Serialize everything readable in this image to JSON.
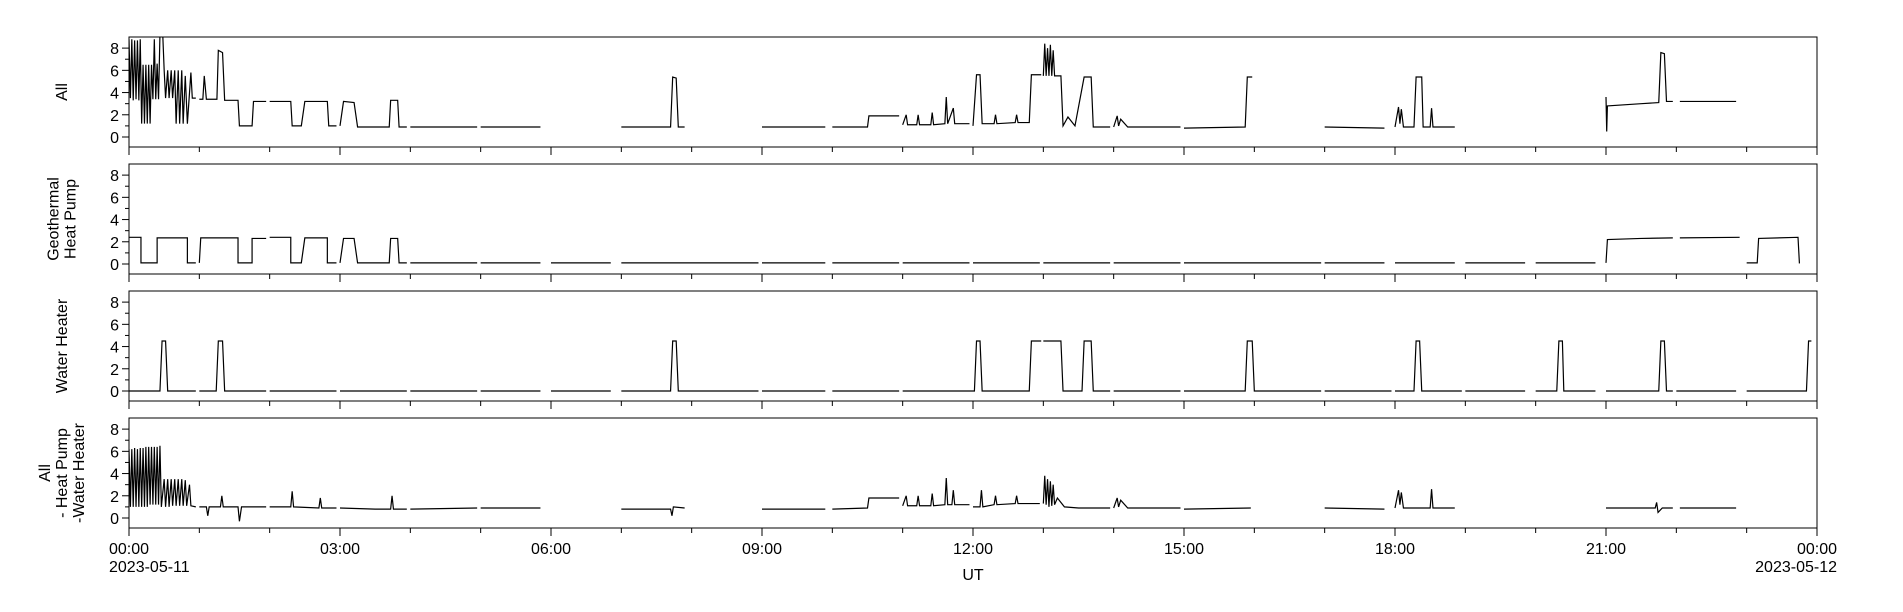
{
  "chart_data": [
    {
      "type": "line",
      "ylabel": [
        "All"
      ],
      "color": "#000000",
      "xlim": [
        0,
        24
      ],
      "ylim": [
        -0.9,
        9.0
      ],
      "yticks": [
        0,
        2,
        4,
        6,
        8
      ],
      "x": [
        0,
        0.02,
        0.04,
        0.06,
        0.08,
        0.1,
        0.12,
        0.14,
        0.16,
        0.18,
        0.2,
        0.22,
        0.24,
        0.26,
        0.28,
        0.3,
        0.32,
        0.34,
        0.36,
        0.38,
        0.4,
        0.42,
        0.44,
        0.48,
        0.5,
        0.52,
        0.55,
        0.57,
        0.6,
        0.62,
        0.65,
        0.67,
        0.7,
        0.72,
        0.75,
        0.77,
        0.8,
        0.83,
        0.88,
        0.9,
        0.95,
        0.97,
        1.0,
        1.05,
        1.07,
        1.1,
        1.25,
        1.27,
        1.33,
        1.36,
        1.55,
        1.57,
        1.75,
        1.77,
        1.95,
        1.97,
        2.0,
        2.3,
        2.32,
        2.45,
        2.5,
        2.82,
        2.84,
        2.95,
        2.97,
        3.0,
        3.05,
        3.2,
        3.25,
        3.7,
        3.72,
        3.82,
        3.84,
        3.95,
        3.97,
        4.0,
        4.95,
        4.97,
        5.0,
        5.85,
        5.9,
        7.0,
        7.7,
        7.73,
        7.78,
        7.81,
        7.9,
        7.92,
        9.0,
        9.9,
        9.95,
        10.0,
        10.5,
        10.52,
        10.95,
        10.97,
        11.0,
        11.05,
        11.07,
        11.2,
        11.22,
        11.24,
        11.4,
        11.42,
        11.44,
        11.6,
        11.62,
        11.64,
        11.72,
        11.74,
        11.95,
        11.97,
        12.0,
        12.05,
        12.1,
        12.13,
        12.3,
        12.32,
        12.34,
        12.6,
        12.62,
        12.64,
        12.8,
        12.83,
        12.97,
        12.98,
        13.0,
        13.02,
        13.04,
        13.06,
        13.08,
        13.1,
        13.12,
        13.14,
        13.16,
        13.25,
        13.28,
        13.35,
        13.45,
        13.58,
        13.68,
        13.71,
        13.95,
        13.97,
        14.0,
        14.05,
        14.07,
        14.1,
        14.2,
        14.95,
        14.97,
        15.0,
        15.87,
        15.9,
        15.97,
        15.99,
        17.0,
        17.85,
        17.9,
        18.0,
        18.05,
        18.07,
        18.09,
        18.12,
        18.27,
        18.3,
        18.38,
        18.4,
        18.5,
        18.52,
        18.54,
        18.85,
        18.9,
        21.0,
        21.01,
        21.02,
        21.5,
        21.75,
        21.78,
        21.83,
        21.86,
        21.95,
        21.97,
        22.05,
        22.85
      ],
      "values": [
        8.8,
        3.5,
        8.8,
        3.3,
        8.7,
        3.4,
        8.7,
        3.3,
        8.8,
        1.2,
        6.5,
        1.2,
        6.5,
        1.2,
        6.5,
        1.2,
        6.5,
        3.4,
        8.8,
        3.4,
        6.6,
        3.4,
        9.2,
        9.2,
        6.0,
        3.5,
        6.0,
        3.5,
        6.0,
        3.5,
        6.0,
        1.2,
        6.0,
        1.2,
        6.0,
        1.2,
        5.5,
        1.2,
        5.8,
        3.5,
        3.5,
        null,
        3.4,
        3.4,
        5.5,
        3.4,
        3.4,
        7.8,
        7.6,
        3.3,
        3.3,
        1.0,
        1.0,
        3.2,
        3.2,
        null,
        3.2,
        3.2,
        1.0,
        1.0,
        3.2,
        3.2,
        1.0,
        1.0,
        null,
        1.0,
        3.2,
        3.1,
        0.9,
        0.9,
        3.3,
        3.3,
        0.9,
        0.9,
        null,
        0.9,
        0.9,
        null,
        0.9,
        0.9,
        null,
        0.9,
        0.9,
        5.4,
        5.3,
        0.9,
        0.9,
        null,
        0.9,
        0.9,
        null,
        0.9,
        0.9,
        1.9,
        1.9,
        null,
        1.1,
        2.0,
        1.1,
        1.1,
        2.0,
        1.1,
        1.1,
        2.2,
        1.1,
        1.2,
        3.6,
        1.2,
        2.6,
        1.2,
        1.2,
        null,
        1.0,
        5.6,
        5.6,
        1.2,
        1.2,
        2.0,
        1.2,
        1.3,
        2.0,
        1.3,
        1.3,
        5.6,
        5.6,
        null,
        5.5,
        8.4,
        5.5,
        8.0,
        5.5,
        8.3,
        5.5,
        7.8,
        5.5,
        5.5,
        1.0,
        1.8,
        1.0,
        5.4,
        5.4,
        0.9,
        0.9,
        null,
        0.9,
        1.9,
        1.0,
        1.6,
        0.9,
        0.9,
        null,
        0.8,
        0.9,
        5.4,
        5.4,
        null,
        0.9,
        0.8,
        null,
        0.9,
        2.7,
        1.2,
        2.5,
        0.9,
        0.9,
        5.4,
        5.4,
        0.9,
        0.9,
        2.6,
        0.9,
        0.9,
        null,
        3.6,
        0.5,
        2.8,
        3.0,
        3.1,
        7.6,
        7.5,
        3.2,
        3.2,
        null,
        3.2,
        3.2
      ]
    },
    {
      "type": "line",
      "ylabel": [
        "Geothermal",
        "Heat Pump"
      ],
      "color": "#000000",
      "xlim": [
        0,
        24
      ],
      "ylim": [
        -0.9,
        9.0
      ],
      "yticks": [
        0,
        2,
        4,
        6,
        8
      ],
      "x": [
        0,
        0.17,
        0.17,
        0.4,
        0.4,
        0.83,
        0.83,
        0.95,
        0.97,
        1.0,
        1.02,
        1.55,
        1.55,
        1.75,
        1.75,
        1.95,
        1.97,
        2.0,
        2.3,
        2.3,
        2.45,
        2.5,
        2.82,
        2.82,
        2.95,
        2.97,
        3.0,
        3.05,
        3.2,
        3.25,
        3.7,
        3.72,
        3.82,
        3.84,
        3.95,
        3.97,
        4.0,
        4.95,
        4.97,
        5.0,
        5.85,
        5.9,
        6.0,
        6.85,
        6.9,
        7.0,
        8.95,
        8.97,
        9.0,
        9.9,
        9.95,
        10.0,
        10.95,
        10.97,
        11.0,
        11.95,
        11.97,
        12.0,
        12.95,
        12.97,
        13.0,
        13.95,
        13.97,
        14.0,
        14.95,
        14.97,
        15.0,
        16.95,
        16.97,
        17.0,
        17.85,
        17.9,
        18.0,
        18.85,
        18.9,
        19.0,
        19.85,
        19.9,
        20.0,
        20.85,
        20.9,
        21.0,
        21.02,
        21.5,
        21.95,
        21.97,
        22.05,
        22.9,
        22.95,
        23.0,
        23.15,
        23.17,
        23.73,
        23.75
      ],
      "values": [
        2.4,
        2.4,
        0.1,
        0.1,
        2.35,
        2.35,
        0.1,
        0.1,
        null,
        0.1,
        2.35,
        2.35,
        0.1,
        0.1,
        2.3,
        2.3,
        null,
        2.4,
        2.4,
        0.1,
        0.1,
        2.35,
        2.35,
        0.1,
        0.1,
        null,
        0.1,
        2.3,
        2.3,
        0.1,
        0.1,
        2.3,
        2.3,
        0.1,
        0.1,
        null,
        0.1,
        0.1,
        null,
        0.1,
        0.1,
        null,
        0.1,
        0.1,
        null,
        0.1,
        0.1,
        null,
        0.1,
        0.1,
        null,
        0.1,
        0.1,
        null,
        0.1,
        0.1,
        null,
        0.1,
        0.1,
        null,
        0.1,
        0.1,
        null,
        0.1,
        0.1,
        null,
        0.1,
        0.1,
        null,
        0.1,
        0.1,
        null,
        0.1,
        0.1,
        null,
        0.1,
        0.1,
        null,
        0.1,
        0.1,
        null,
        0.1,
        2.2,
        2.3,
        2.35,
        null,
        2.35,
        2.4,
        null,
        0.1,
        0.1,
        2.3,
        2.4,
        0.05
      ]
    },
    {
      "type": "line",
      "ylabel": [
        "Water Heater"
      ],
      "color": "#000000",
      "xlim": [
        0,
        24
      ],
      "ylim": [
        -0.9,
        9.0
      ],
      "yticks": [
        0,
        2,
        4,
        6,
        8
      ],
      "x": [
        0,
        0.44,
        0.47,
        0.52,
        0.55,
        0.95,
        0.97,
        1.0,
        1.24,
        1.27,
        1.33,
        1.36,
        1.95,
        1.97,
        2.0,
        2.95,
        2.97,
        3.0,
        3.95,
        3.97,
        4.0,
        4.95,
        4.97,
        5.0,
        5.85,
        5.9,
        6.0,
        6.85,
        6.9,
        7.0,
        7.7,
        7.73,
        7.78,
        7.81,
        8.95,
        8.97,
        9.0,
        9.9,
        9.95,
        10.0,
        10.95,
        10.97,
        11.0,
        12.02,
        12.05,
        12.1,
        12.13,
        12.8,
        12.83,
        12.97,
        12.98,
        13.0,
        13.25,
        13.28,
        13.55,
        13.58,
        13.68,
        13.71,
        13.95,
        13.97,
        14.0,
        14.95,
        14.97,
        15.0,
        15.87,
        15.9,
        15.97,
        16.0,
        16.95,
        16.97,
        17.0,
        17.95,
        17.97,
        18.0,
        18.27,
        18.3,
        18.35,
        18.38,
        18.95,
        18.97,
        19.0,
        19.85,
        19.9,
        20.0,
        20.3,
        20.33,
        20.38,
        20.4,
        20.85,
        20.9,
        21.0,
        21.75,
        21.78,
        21.83,
        21.86,
        21.95,
        21.97,
        22.0,
        22.85,
        22.9,
        23.0,
        23.85,
        23.88,
        23.92
      ],
      "values": [
        0,
        0,
        4.5,
        4.5,
        0,
        0,
        null,
        0,
        0,
        4.5,
        4.5,
        0,
        0,
        null,
        0,
        0,
        null,
        0,
        0,
        null,
        0,
        0,
        null,
        0,
        0,
        null,
        0,
        0,
        null,
        0,
        0,
        4.5,
        4.5,
        0,
        0,
        null,
        0,
        0,
        null,
        0,
        0,
        null,
        0,
        0,
        4.5,
        4.5,
        0,
        0,
        4.5,
        4.5,
        null,
        4.5,
        4.5,
        0,
        0,
        4.5,
        4.5,
        0,
        0,
        null,
        0,
        0,
        null,
        0,
        0,
        4.5,
        4.5,
        0,
        0,
        null,
        0,
        0,
        null,
        0,
        0,
        4.5,
        4.5,
        0,
        0,
        null,
        0,
        0,
        null,
        0,
        0,
        4.5,
        4.5,
        0,
        0,
        null,
        0,
        0,
        4.5,
        4.5,
        0,
        0,
        null,
        0,
        0,
        null,
        0,
        0,
        4.5,
        4.5
      ]
    },
    {
      "type": "line",
      "ylabel": [
        "All",
        "- Heat Pump",
        "-Water Heater"
      ],
      "color": "#000000",
      "xlim": [
        0,
        24
      ],
      "ylim": [
        -0.9,
        9.0
      ],
      "yticks": [
        0,
        2,
        4,
        6,
        8
      ],
      "xlabel": "UT",
      "xticks": [
        {
          "value": 0,
          "label": "00:00"
        },
        {
          "value": 3,
          "label": "03:00"
        },
        {
          "value": 6,
          "label": "06:00"
        },
        {
          "value": 9,
          "label": "09:00"
        },
        {
          "value": 12,
          "label": "12:00"
        },
        {
          "value": 15,
          "label": "15:00"
        },
        {
          "value": 18,
          "label": "18:00"
        },
        {
          "value": 21,
          "label": "21:00"
        },
        {
          "value": 24,
          "label": "00:00"
        }
      ],
      "x_date_labels": [
        {
          "value": 0,
          "label": "2023-05-11"
        },
        {
          "value": 24,
          "label": "2023-05-12"
        }
      ],
      "x": [
        0,
        0.02,
        0.04,
        0.06,
        0.08,
        0.1,
        0.12,
        0.14,
        0.16,
        0.18,
        0.2,
        0.22,
        0.24,
        0.26,
        0.28,
        0.3,
        0.32,
        0.34,
        0.36,
        0.38,
        0.4,
        0.42,
        0.44,
        0.46,
        0.5,
        0.52,
        0.55,
        0.57,
        0.6,
        0.62,
        0.65,
        0.67,
        0.7,
        0.72,
        0.75,
        0.77,
        0.8,
        0.82,
        0.86,
        0.88,
        0.95,
        0.97,
        1.0,
        1.1,
        1.12,
        1.14,
        1.3,
        1.32,
        1.34,
        1.55,
        1.57,
        1.6,
        1.95,
        1.97,
        2.0,
        2.3,
        2.32,
        2.34,
        2.7,
        2.72,
        2.74,
        2.95,
        2.97,
        3.0,
        3.5,
        3.72,
        3.74,
        3.76,
        3.95,
        3.97,
        4.0,
        4.95,
        4.97,
        5.0,
        5.85,
        5.9,
        7.0,
        7.7,
        7.72,
        7.74,
        7.9,
        7.92,
        9.0,
        9.9,
        9.95,
        10.0,
        10.5,
        10.52,
        10.95,
        10.97,
        11.0,
        11.05,
        11.07,
        11.2,
        11.22,
        11.24,
        11.4,
        11.42,
        11.44,
        11.6,
        11.62,
        11.64,
        11.7,
        11.72,
        11.74,
        11.95,
        11.97,
        12.0,
        12.1,
        12.12,
        12.14,
        12.3,
        12.32,
        12.34,
        12.6,
        12.62,
        12.64,
        12.95,
        12.97,
        13.0,
        13.02,
        13.04,
        13.06,
        13.08,
        13.1,
        13.12,
        13.14,
        13.16,
        13.2,
        13.3,
        13.5,
        13.95,
        13.97,
        14.0,
        14.05,
        14.07,
        14.1,
        14.2,
        14.95,
        14.97,
        15.0,
        15.95,
        15.97,
        17.0,
        17.85,
        17.9,
        18.0,
        18.05,
        18.07,
        18.09,
        18.12,
        18.5,
        18.52,
        18.54,
        18.85,
        18.9,
        21.0,
        21.7,
        21.72,
        21.74,
        21.8,
        21.95,
        21.97,
        22.05,
        22.85
      ],
      "values": [
        6.2,
        1,
        6.2,
        1,
        6.3,
        1,
        6.2,
        1,
        6.3,
        1,
        6.3,
        1,
        6.4,
        1,
        6.4,
        1.2,
        6.4,
        1.2,
        6.4,
        1.2,
        6.4,
        1.2,
        6.5,
        1,
        3.5,
        1,
        3.5,
        1,
        3.5,
        1.1,
        3.5,
        1.1,
        3.5,
        1.1,
        3.5,
        1.1,
        3.4,
        1.1,
        3.0,
        1.1,
        1.0,
        null,
        1.0,
        1.0,
        0.2,
        1.0,
        1.0,
        2.0,
        1.0,
        1.0,
        -0.3,
        1.0,
        1.0,
        null,
        1.0,
        1.0,
        2.4,
        1.0,
        0.9,
        1.8,
        0.9,
        0.9,
        null,
        0.9,
        0.8,
        0.8,
        2.0,
        0.8,
        0.8,
        null,
        0.8,
        0.9,
        null,
        0.9,
        0.9,
        null,
        0.8,
        0.8,
        0.2,
        1.0,
        0.9,
        null,
        0.8,
        0.8,
        null,
        0.8,
        0.9,
        1.8,
        1.8,
        null,
        1.1,
        2.0,
        1.1,
        1.1,
        2.0,
        1.1,
        1.1,
        2.2,
        1.1,
        1.2,
        3.6,
        1.2,
        1.2,
        2.5,
        1.2,
        1.2,
        null,
        1.0,
        1.0,
        2.5,
        1.0,
        1.2,
        2.0,
        1.2,
        1.3,
        2.0,
        1.3,
        1.3,
        null,
        1.3,
        3.8,
        1.2,
        3.5,
        1.0,
        3.3,
        1.1,
        3.0,
        1.2,
        1.8,
        1.0,
        0.9,
        0.9,
        null,
        0.9,
        1.8,
        1.0,
        1.6,
        0.9,
        0.9,
        null,
        0.8,
        0.9,
        null,
        0.9,
        0.8,
        null,
        0.9,
        2.5,
        1.2,
        2.3,
        0.9,
        0.9,
        2.6,
        0.9,
        0.9,
        null,
        0.9,
        0.9,
        1.4,
        0.5,
        0.9,
        0.9,
        null,
        0.9,
        0.9
      ]
    }
  ]
}
